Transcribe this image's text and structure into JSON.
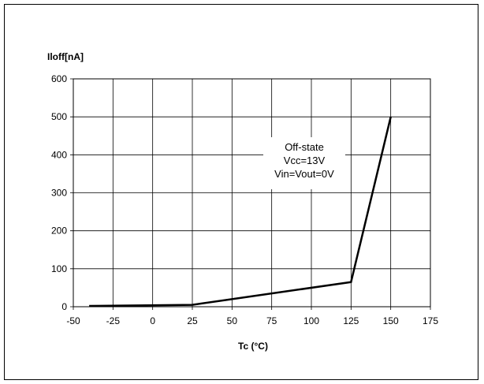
{
  "chart_data": {
    "type": "line",
    "ylabel": "Iloff[nA]",
    "xlabel": "Tc (°C)",
    "xlim": [
      -50,
      175
    ],
    "ylim": [
      0,
      600
    ],
    "x_ticks": [
      -50,
      -25,
      0,
      25,
      50,
      75,
      100,
      125,
      150,
      175
    ],
    "y_ticks": [
      0,
      100,
      200,
      300,
      400,
      500,
      600
    ],
    "grid": true,
    "series": [
      {
        "x": [
          -40,
          25,
          125,
          150
        ],
        "y": [
          2,
          5,
          65,
          500
        ]
      }
    ],
    "annotation": [
      "Off-state",
      "Vcc=13V",
      "Vin=Vout=0V"
    ],
    "colors": {
      "line": "#000000",
      "grid": "#000000"
    }
  }
}
